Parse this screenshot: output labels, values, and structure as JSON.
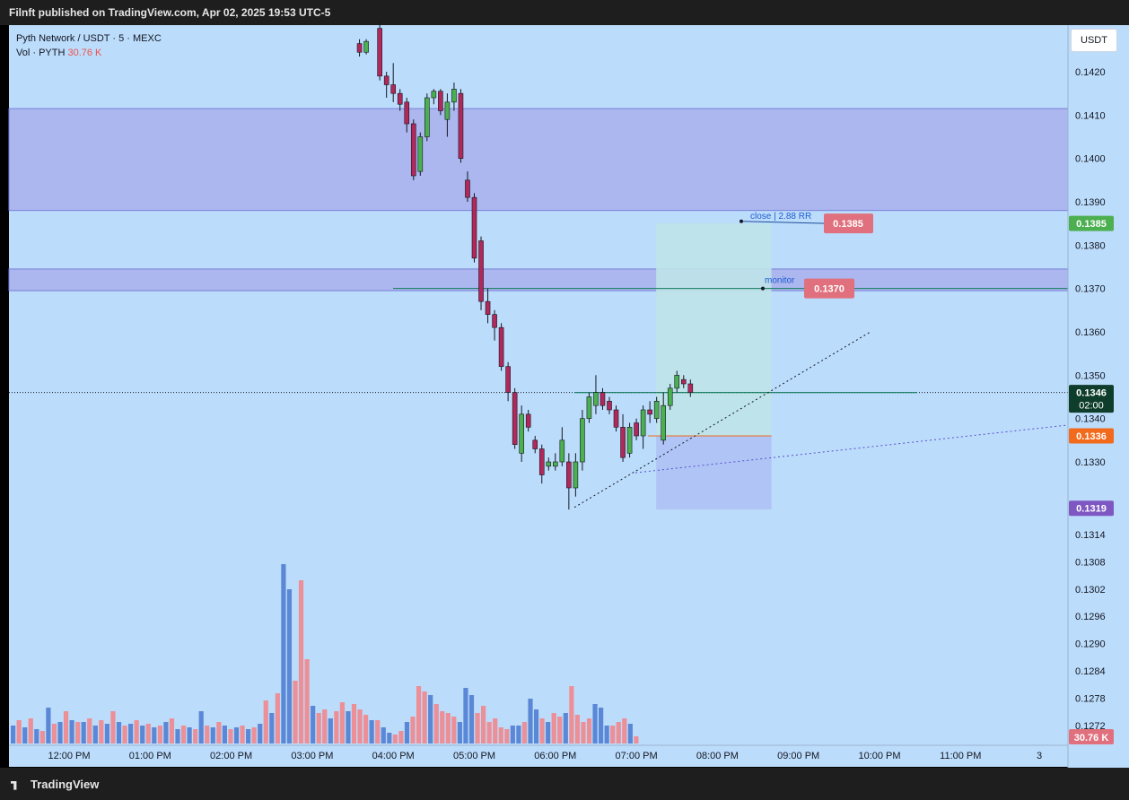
{
  "header": {
    "publisher_line": "Filnft published on TradingView.com, Apr 02, 2025 19:53 UTC-5"
  },
  "legend": {
    "symbol_line": "Pyth Network / USDT · 5 · MEXC",
    "vol_label": "Vol · PYTH",
    "vol_value": "30.76 K"
  },
  "currency_button": "USDT",
  "footer": {
    "brand": "TradingView"
  },
  "colors": {
    "background": "#bcdcfb",
    "up_candle": "#4caf50",
    "down_candle": "#b2285a",
    "volume_up": "#5b88d6",
    "volume_down": "#ec8f97",
    "zone_fill": "#a9b3ec",
    "profit_zone": "#bfe3e8",
    "stop_zone": "#aebff4",
    "tag_red": "#e0707d",
    "tag_green": "#4caf50",
    "tag_orange": "#f26a1b",
    "tag_purple": "#7e57c2",
    "tag_dark": "#0f3d2c"
  },
  "chart_data": {
    "type": "candlestick",
    "symbol": "Pyth Network / USDT",
    "interval": "5",
    "exchange": "MEXC",
    "price_axis": {
      "ticks": [
        "0.1420",
        "0.1410",
        "0.1400",
        "0.1390",
        "0.1380",
        "0.1370",
        "0.1360",
        "0.1350",
        "0.1340",
        "0.1330"
      ],
      "ticks_lower": [
        "0.1314",
        "0.1308",
        "0.1302",
        "0.1296",
        "0.1290",
        "0.1284",
        "0.1278",
        "0.1272"
      ],
      "range": [
        0.1318,
        0.1426
      ]
    },
    "time_axis": {
      "labels": [
        "12:00 PM",
        "01:00 PM",
        "02:00 PM",
        "03:00 PM",
        "04:00 PM",
        "05:00 PM",
        "06:00 PM",
        "07:00 PM",
        "08:00 PM",
        "09:00 PM",
        "10:00 PM",
        "11:00 PM",
        "3"
      ]
    },
    "candles": [
      {
        "t": "15:35",
        "o": 0.14265,
        "h": 0.14275,
        "l": 0.14235,
        "c": 0.14245
      },
      {
        "t": "15:40",
        "o": 0.14245,
        "h": 0.14275,
        "l": 0.1424,
        "c": 0.1427
      },
      {
        "t": "15:50",
        "o": 0.143,
        "h": 0.1432,
        "l": 0.1418,
        "c": 0.1419
      },
      {
        "t": "15:55",
        "o": 0.1419,
        "h": 0.142,
        "l": 0.1414,
        "c": 0.1417
      },
      {
        "t": "16:00",
        "o": 0.1417,
        "h": 0.1422,
        "l": 0.1413,
        "c": 0.1415
      },
      {
        "t": "16:05",
        "o": 0.1415,
        "h": 0.1416,
        "l": 0.1411,
        "c": 0.14125
      },
      {
        "t": "16:10",
        "o": 0.1413,
        "h": 0.1414,
        "l": 0.1406,
        "c": 0.1408
      },
      {
        "t": "16:15",
        "o": 0.1408,
        "h": 0.1409,
        "l": 0.1395,
        "c": 0.1396
      },
      {
        "t": "16:20",
        "o": 0.1397,
        "h": 0.1406,
        "l": 0.1396,
        "c": 0.1405
      },
      {
        "t": "16:25",
        "o": 0.1405,
        "h": 0.1415,
        "l": 0.1404,
        "c": 0.1414
      },
      {
        "t": "16:30",
        "o": 0.1414,
        "h": 0.1416,
        "l": 0.14125,
        "c": 0.14155
      },
      {
        "t": "16:35",
        "o": 0.14155,
        "h": 0.1416,
        "l": 0.141,
        "c": 0.1411
      },
      {
        "t": "16:40",
        "o": 0.1409,
        "h": 0.1415,
        "l": 0.1405,
        "c": 0.1413
      },
      {
        "t": "16:45",
        "o": 0.1413,
        "h": 0.14175,
        "l": 0.1411,
        "c": 0.1416
      },
      {
        "t": "16:50",
        "o": 0.1415,
        "h": 0.1416,
        "l": 0.1399,
        "c": 0.14
      },
      {
        "t": "16:55",
        "o": 0.1395,
        "h": 0.1397,
        "l": 0.139,
        "c": 0.1391
      },
      {
        "t": "17:00",
        "o": 0.1391,
        "h": 0.1392,
        "l": 0.1376,
        "c": 0.1377
      },
      {
        "t": "17:05",
        "o": 0.1381,
        "h": 0.1382,
        "l": 0.1365,
        "c": 0.1367
      },
      {
        "t": "17:10",
        "o": 0.1367,
        "h": 0.137,
        "l": 0.1362,
        "c": 0.1364
      },
      {
        "t": "17:15",
        "o": 0.1364,
        "h": 0.1365,
        "l": 0.1358,
        "c": 0.1361
      },
      {
        "t": "17:20",
        "o": 0.1361,
        "h": 0.1362,
        "l": 0.1351,
        "c": 0.1352
      },
      {
        "t": "17:25",
        "o": 0.1352,
        "h": 0.1353,
        "l": 0.1344,
        "c": 0.1346
      },
      {
        "t": "17:30",
        "o": 0.1346,
        "h": 0.1347,
        "l": 0.1333,
        "c": 0.1334
      },
      {
        "t": "17:35",
        "o": 0.1332,
        "h": 0.1343,
        "l": 0.133,
        "c": 0.1341
      },
      {
        "t": "17:40",
        "o": 0.1341,
        "h": 0.1342,
        "l": 0.1337,
        "c": 0.1338
      },
      {
        "t": "17:45",
        "o": 0.1335,
        "h": 0.1336,
        "l": 0.1332,
        "c": 0.1333
      },
      {
        "t": "17:50",
        "o": 0.1333,
        "h": 0.1334,
        "l": 0.1325,
        "c": 0.1327
      },
      {
        "t": "17:55",
        "o": 0.1329,
        "h": 0.1331,
        "l": 0.1328,
        "c": 0.133
      },
      {
        "t": "18:00",
        "o": 0.1329,
        "h": 0.1332,
        "l": 0.1328,
        "c": 0.133
      },
      {
        "t": "18:05",
        "o": 0.133,
        "h": 0.1338,
        "l": 0.1329,
        "c": 0.1335
      },
      {
        "t": "18:10",
        "o": 0.133,
        "h": 0.1332,
        "l": 0.1319,
        "c": 0.1324
      },
      {
        "t": "18:15",
        "o": 0.1324,
        "h": 0.1332,
        "l": 0.1322,
        "c": 0.133
      },
      {
        "t": "18:20",
        "o": 0.133,
        "h": 0.1342,
        "l": 0.1328,
        "c": 0.134
      },
      {
        "t": "18:25",
        "o": 0.134,
        "h": 0.1346,
        "l": 0.1339,
        "c": 0.1345
      },
      {
        "t": "18:30",
        "o": 0.1343,
        "h": 0.135,
        "l": 0.1341,
        "c": 0.1346
      },
      {
        "t": "18:35",
        "o": 0.1346,
        "h": 0.1347,
        "l": 0.1342,
        "c": 0.1343
      },
      {
        "t": "18:40",
        "o": 0.1344,
        "h": 0.1345,
        "l": 0.1341,
        "c": 0.1342
      },
      {
        "t": "18:45",
        "o": 0.1342,
        "h": 0.1343,
        "l": 0.1337,
        "c": 0.1338
      },
      {
        "t": "18:50",
        "o": 0.1338,
        "h": 0.1341,
        "l": 0.133,
        "c": 0.1331
      },
      {
        "t": "18:55",
        "o": 0.1332,
        "h": 0.1339,
        "l": 0.1331,
        "c": 0.1338
      },
      {
        "t": "19:00",
        "o": 0.1339,
        "h": 0.134,
        "l": 0.1335,
        "c": 0.1336
      },
      {
        "t": "19:05",
        "o": 0.1336,
        "h": 0.1343,
        "l": 0.1333,
        "c": 0.1342
      },
      {
        "t": "19:10",
        "o": 0.1342,
        "h": 0.1344,
        "l": 0.1339,
        "c": 0.1341
      },
      {
        "t": "19:15",
        "o": 0.134,
        "h": 0.1345,
        "l": 0.1339,
        "c": 0.1344
      },
      {
        "t": "19:20",
        "o": 0.1335,
        "h": 0.1346,
        "l": 0.1334,
        "c": 0.1343
      },
      {
        "t": "19:25",
        "o": 0.1343,
        "h": 0.1348,
        "l": 0.1342,
        "c": 0.1347
      },
      {
        "t": "19:30",
        "o": 0.1347,
        "h": 0.1351,
        "l": 0.1346,
        "c": 0.135
      },
      {
        "t": "19:35",
        "o": 0.1349,
        "h": 0.135,
        "l": 0.1347,
        "c": 0.1348
      },
      {
        "t": "19:40",
        "o": 0.1348,
        "h": 0.1349,
        "l": 0.1345,
        "c": 0.1346
      }
    ],
    "volume": [
      {
        "d": "up",
        "v": 0.1
      },
      {
        "d": "down",
        "v": 0.13
      },
      {
        "d": "up",
        "v": 0.09
      },
      {
        "d": "down",
        "v": 0.14
      },
      {
        "d": "up",
        "v": 0.08
      },
      {
        "d": "down",
        "v": 0.07
      },
      {
        "d": "up",
        "v": 0.2
      },
      {
        "d": "down",
        "v": 0.11
      },
      {
        "d": "up",
        "v": 0.12
      },
      {
        "d": "down",
        "v": 0.18
      },
      {
        "d": "up",
        "v": 0.13
      },
      {
        "d": "down",
        "v": 0.12
      },
      {
        "d": "up",
        "v": 0.12
      },
      {
        "d": "down",
        "v": 0.14
      },
      {
        "d": "up",
        "v": 0.1
      },
      {
        "d": "down",
        "v": 0.13
      },
      {
        "d": "up",
        "v": 0.11
      },
      {
        "d": "down",
        "v": 0.18
      },
      {
        "d": "up",
        "v": 0.12
      },
      {
        "d": "down",
        "v": 0.1
      },
      {
        "d": "up",
        "v": 0.11
      },
      {
        "d": "down",
        "v": 0.13
      },
      {
        "d": "up",
        "v": 0.1
      },
      {
        "d": "down",
        "v": 0.11
      },
      {
        "d": "up",
        "v": 0.09
      },
      {
        "d": "down",
        "v": 0.1
      },
      {
        "d": "up",
        "v": 0.12
      },
      {
        "d": "down",
        "v": 0.14
      },
      {
        "d": "up",
        "v": 0.08
      },
      {
        "d": "down",
        "v": 0.1
      },
      {
        "d": "up",
        "v": 0.09
      },
      {
        "d": "down",
        "v": 0.08
      },
      {
        "d": "up",
        "v": 0.18
      },
      {
        "d": "down",
        "v": 0.1
      },
      {
        "d": "up",
        "v": 0.09
      },
      {
        "d": "down",
        "v": 0.12
      },
      {
        "d": "up",
        "v": 0.1
      },
      {
        "d": "down",
        "v": 0.08
      },
      {
        "d": "up",
        "v": 0.09
      },
      {
        "d": "down",
        "v": 0.1
      },
      {
        "d": "up",
        "v": 0.08
      },
      {
        "d": "down",
        "v": 0.09
      },
      {
        "d": "up",
        "v": 0.11
      },
      {
        "d": "down",
        "v": 0.24
      },
      {
        "d": "up",
        "v": 0.17
      },
      {
        "d": "down",
        "v": 0.28
      },
      {
        "d": "up",
        "v": 1.0
      },
      {
        "d": "up",
        "v": 0.86
      },
      {
        "d": "down",
        "v": 0.35
      },
      {
        "d": "down",
        "v": 0.91
      },
      {
        "d": "down",
        "v": 0.47
      },
      {
        "d": "up",
        "v": 0.21
      },
      {
        "d": "down",
        "v": 0.17
      },
      {
        "d": "down",
        "v": 0.19
      },
      {
        "d": "up",
        "v": 0.14
      },
      {
        "d": "down",
        "v": 0.18
      },
      {
        "d": "down",
        "v": 0.23
      },
      {
        "d": "up",
        "v": 0.18
      },
      {
        "d": "down",
        "v": 0.22
      },
      {
        "d": "down",
        "v": 0.19
      },
      {
        "d": "down",
        "v": 0.16
      },
      {
        "d": "up",
        "v": 0.13
      },
      {
        "d": "down",
        "v": 0.13
      },
      {
        "d": "up",
        "v": 0.09
      },
      {
        "d": "up",
        "v": 0.06
      },
      {
        "d": "down",
        "v": 0.05
      },
      {
        "d": "down",
        "v": 0.07
      },
      {
        "d": "up",
        "v": 0.12
      },
      {
        "d": "down",
        "v": 0.15
      },
      {
        "d": "down",
        "v": 0.32
      },
      {
        "d": "down",
        "v": 0.29
      },
      {
        "d": "up",
        "v": 0.27
      },
      {
        "d": "down",
        "v": 0.22
      },
      {
        "d": "down",
        "v": 0.18
      },
      {
        "d": "down",
        "v": 0.17
      },
      {
        "d": "down",
        "v": 0.15
      },
      {
        "d": "up",
        "v": 0.12
      },
      {
        "d": "up",
        "v": 0.31
      },
      {
        "d": "up",
        "v": 0.27
      },
      {
        "d": "down",
        "v": 0.17
      },
      {
        "d": "down",
        "v": 0.21
      },
      {
        "d": "down",
        "v": 0.12
      },
      {
        "d": "down",
        "v": 0.14
      },
      {
        "d": "down",
        "v": 0.09
      },
      {
        "d": "down",
        "v": 0.08
      },
      {
        "d": "up",
        "v": 0.1
      },
      {
        "d": "up",
        "v": 0.1
      },
      {
        "d": "down",
        "v": 0.12
      },
      {
        "d": "up",
        "v": 0.25
      },
      {
        "d": "up",
        "v": 0.19
      },
      {
        "d": "down",
        "v": 0.14
      },
      {
        "d": "up",
        "v": 0.12
      },
      {
        "d": "down",
        "v": 0.17
      },
      {
        "d": "down",
        "v": 0.15
      },
      {
        "d": "up",
        "v": 0.17
      },
      {
        "d": "down",
        "v": 0.32
      },
      {
        "d": "down",
        "v": 0.16
      },
      {
        "d": "down",
        "v": 0.12
      },
      {
        "d": "down",
        "v": 0.14
      },
      {
        "d": "up",
        "v": 0.22
      },
      {
        "d": "up",
        "v": 0.2
      },
      {
        "d": "up",
        "v": 0.1
      },
      {
        "d": "down",
        "v": 0.1
      },
      {
        "d": "down",
        "v": 0.12
      },
      {
        "d": "down",
        "v": 0.14
      },
      {
        "d": "up",
        "v": 0.11
      },
      {
        "d": "down",
        "v": 0.04
      }
    ],
    "zones": [
      {
        "name": "supply-zone-upper",
        "from": 0.1388,
        "to": 0.14115
      },
      {
        "name": "supply-zone-lower",
        "from": 0.13695,
        "to": 0.13745
      }
    ],
    "position": {
      "target": 0.1385,
      "entry": 0.1336,
      "stop": 0.1319,
      "target_label": "close | 2.88 RR",
      "target_tag": "0.1385",
      "monitor_label": "monitor",
      "monitor_tag": "0.1370"
    },
    "price_tags": {
      "target": "0.1385",
      "current": "0.1346",
      "countdown": "02:00",
      "entry": "0.1336",
      "stop": "0.1319",
      "volume": "30.76 K"
    }
  }
}
